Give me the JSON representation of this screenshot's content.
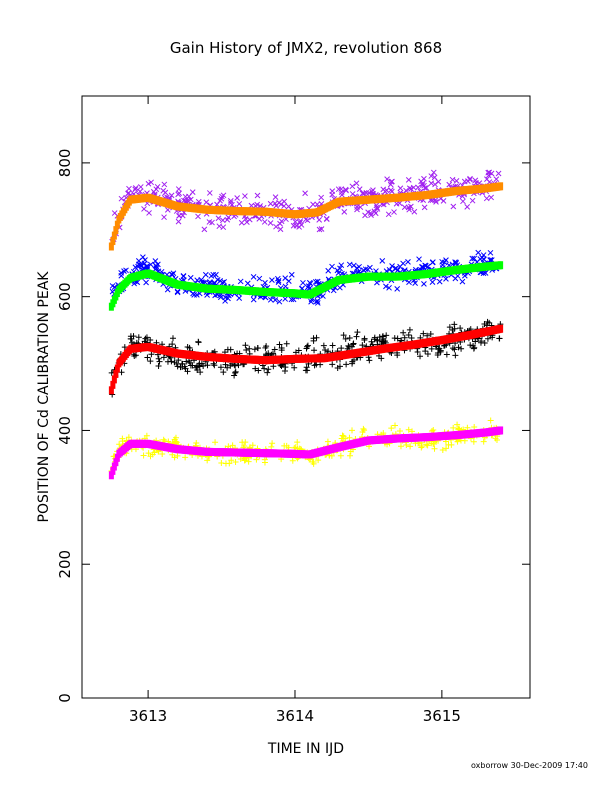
{
  "chart_data": {
    "type": "scatter",
    "title": "Gain History of JMX2, revolution 868",
    "xlabel": "TIME IN IJD",
    "ylabel": "POSITION OF Cd CALIBRATION PEAK",
    "footer": "oxborrow 30-Dec-2009 17:40",
    "xlim": [
      3612.55,
      3615.6
    ],
    "ylim": [
      0,
      900
    ],
    "xticks": [
      3613,
      3614,
      3615
    ],
    "xtick_labels": [
      "3613",
      "3614",
      "3615"
    ],
    "yticks": [
      0,
      200,
      400,
      600,
      800
    ],
    "ytick_labels": [
      "0",
      "200",
      "400",
      "600",
      "800"
    ],
    "grid": false,
    "colors": {
      "purple": "#a020f0",
      "orange": "#ff8c00",
      "blue": "#0000ff",
      "green": "#00ff00",
      "black": "#000000",
      "red": "#ff0000",
      "yellow": "#ffff00",
      "magenta": "#ff00ff"
    },
    "series": [
      {
        "marker": "x",
        "color": "#a020f0",
        "spread": 22,
        "x": [
          3612.75,
          3612.8,
          3612.88,
          3613.0,
          3613.2,
          3613.4,
          3613.6,
          3613.8,
          3614.0,
          3614.15,
          3614.3,
          3614.5,
          3614.7,
          3614.9,
          3615.1,
          3615.3,
          3615.4
        ],
        "values": [
          690,
          725,
          755,
          752,
          738,
          728,
          728,
          728,
          725,
          728,
          745,
          745,
          752,
          758,
          760,
          762,
          768
        ]
      },
      {
        "marker": "line",
        "color": "#ff8c00",
        "x": [
          3612.75,
          3612.8,
          3612.88,
          3613.0,
          3613.2,
          3613.4,
          3613.6,
          3613.8,
          3614.0,
          3614.15,
          3614.3,
          3614.5,
          3614.7,
          3614.9,
          3615.1,
          3615.3,
          3615.4
        ],
        "values": [
          675,
          715,
          745,
          748,
          735,
          730,
          728,
          727,
          723,
          726,
          742,
          745,
          748,
          752,
          758,
          762,
          765
        ]
      },
      {
        "marker": "x",
        "color": "#0000ff",
        "spread": 18,
        "x": [
          3612.75,
          3612.8,
          3612.88,
          3613.0,
          3613.2,
          3613.4,
          3613.6,
          3613.8,
          3614.0,
          3614.1,
          3614.3,
          3614.5,
          3614.7,
          3614.9,
          3615.1,
          3615.3,
          3615.4
        ],
        "values": [
          600,
          615,
          632,
          640,
          618,
          612,
          610,
          608,
          608,
          605,
          628,
          635,
          632,
          635,
          642,
          648,
          652
        ]
      },
      {
        "marker": "line",
        "color": "#00ff00",
        "x": [
          3612.75,
          3612.8,
          3612.88,
          3613.0,
          3613.2,
          3613.4,
          3613.6,
          3613.8,
          3614.0,
          3614.1,
          3614.3,
          3614.5,
          3614.7,
          3614.9,
          3615.1,
          3615.3,
          3615.4
        ],
        "values": [
          585,
          610,
          628,
          635,
          618,
          612,
          610,
          607,
          605,
          603,
          625,
          630,
          630,
          634,
          640,
          645,
          647
        ]
      },
      {
        "marker": "+",
        "color": "#000000",
        "spread": 22,
        "x": [
          3612.75,
          3612.8,
          3612.88,
          3613.0,
          3613.2,
          3613.4,
          3613.6,
          3613.8,
          3614.0,
          3614.2,
          3614.4,
          3614.6,
          3614.8,
          3615.0,
          3615.2,
          3615.4
        ],
        "values": [
          470,
          505,
          525,
          528,
          510,
          505,
          505,
          505,
          508,
          508,
          520,
          528,
          530,
          535,
          540,
          550
        ]
      },
      {
        "marker": "line",
        "color": "#ff0000",
        "x": [
          3612.75,
          3612.8,
          3612.88,
          3613.0,
          3613.2,
          3613.4,
          3613.6,
          3613.8,
          3614.0,
          3614.2,
          3614.4,
          3614.6,
          3614.8,
          3615.0,
          3615.2,
          3615.4
        ],
        "values": [
          460,
          500,
          522,
          525,
          515,
          510,
          507,
          505,
          507,
          508,
          515,
          522,
          528,
          535,
          543,
          552
        ]
      },
      {
        "marker": "+",
        "color": "#ffff00",
        "spread": 14,
        "x": [
          3612.75,
          3612.8,
          3612.88,
          3613.0,
          3613.2,
          3613.4,
          3613.6,
          3613.8,
          3614.0,
          3614.1,
          3614.3,
          3614.5,
          3614.7,
          3614.9,
          3615.1,
          3615.3,
          3615.4
        ],
        "values": [
          345,
          370,
          382,
          378,
          372,
          368,
          366,
          365,
          365,
          362,
          378,
          388,
          390,
          388,
          392,
          395,
          400
        ]
      },
      {
        "marker": "line",
        "color": "#ff00ff",
        "x": [
          3612.75,
          3612.8,
          3612.88,
          3613.0,
          3613.2,
          3613.4,
          3613.6,
          3613.8,
          3614.0,
          3614.1,
          3614.3,
          3614.5,
          3614.7,
          3614.9,
          3615.1,
          3615.3,
          3615.4
        ],
        "values": [
          333,
          365,
          380,
          380,
          372,
          368,
          367,
          366,
          365,
          364,
          375,
          385,
          388,
          390,
          393,
          397,
          400
        ]
      }
    ]
  }
}
